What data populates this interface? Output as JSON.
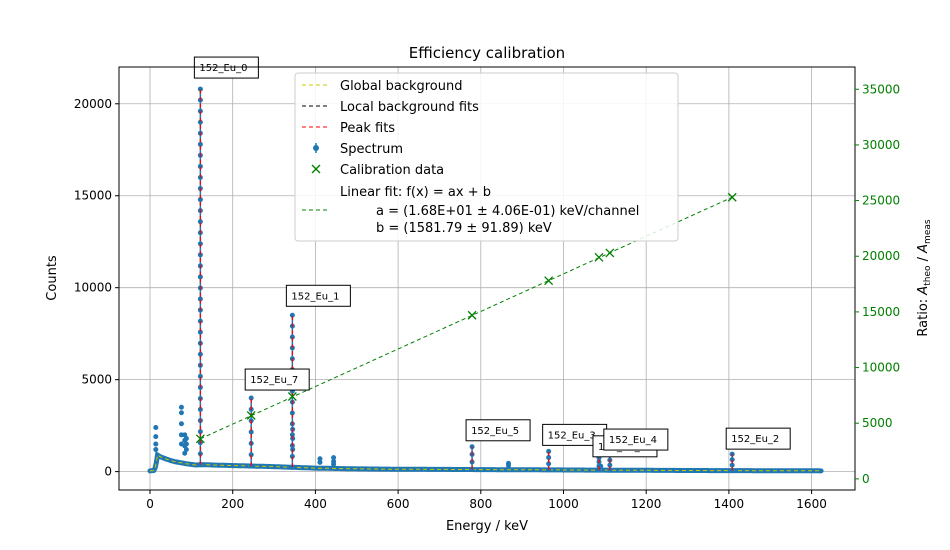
{
  "chart_data": {
    "type": "scatter",
    "title": "Efficiency calibration",
    "xlabel": "Energy / keV",
    "ylabel_left": "Counts",
    "ylabel_right": "Ratio: A_theo / A_meas",
    "xlim": [
      -75,
      1705
    ],
    "ylim_left": [
      -1000,
      22000
    ],
    "ylim_right": [
      -1000,
      37000
    ],
    "x_ticks": [
      "0",
      "200",
      "400",
      "600",
      "800",
      "1000",
      "1200",
      "1400",
      "1600"
    ],
    "y_ticks_left": [
      "0",
      "5000",
      "10000",
      "15000",
      "20000"
    ],
    "y_ticks_right": [
      "0",
      "5000",
      "10000",
      "15000",
      "20000",
      "25000",
      "30000",
      "35000"
    ],
    "grid": true,
    "legend_position": "top-center",
    "legend": [
      {
        "label": "Global background",
        "style": "dashed",
        "color": "#c8c800"
      },
      {
        "label": "Local background fits",
        "style": "dashed",
        "color": "#000000"
      },
      {
        "label": "Peak fits",
        "style": "dashed",
        "color": "#ff0000"
      },
      {
        "label": "Spectrum",
        "style": "errorbar-point",
        "color": "#1f77b4"
      },
      {
        "label": "Calibration data",
        "style": "x-marker",
        "color": "#008000"
      },
      {
        "label": "Linear fit: f(x) = ax + b",
        "style": "dashed",
        "color": "#008000",
        "lines": [
          "a = (1.68E+01 ± 4.06E-01)  keV/channel",
          "b = (1581.79 ± 91.89)  keV"
        ]
      }
    ],
    "peaks": [
      {
        "label": "152_Eu_0",
        "energy": 121.8,
        "counts": 20800
      },
      {
        "label": "152_Eu_1",
        "energy": 344.3,
        "counts": 8500
      },
      {
        "label": "152_Eu_7",
        "energy": 244.7,
        "counts": 4000
      },
      {
        "label": "152_Eu_5",
        "energy": 778.9,
        "counts": 1350
      },
      {
        "label": "152_Eu_3",
        "energy": 964.1,
        "counts": 1100
      },
      {
        "label": "152_Eu_6",
        "energy": 1085.8,
        "counts": 750
      },
      {
        "label": "152_Eu_4",
        "energy": 1112.1,
        "counts": 900
      },
      {
        "label": "152_Eu_2",
        "energy": 1408.0,
        "counts": 950
      }
    ],
    "calibration_data": {
      "x": [
        121.8,
        244.7,
        344.3,
        778.9,
        964.1,
        1085.8,
        1112.1,
        1408.0
      ],
      "y": [
        3600,
        5700,
        7400,
        14700,
        17800,
        19900,
        20300,
        25300
      ]
    },
    "fit_line": {
      "x": [
        121.8,
        1408.0
      ],
      "y": [
        3600,
        25300
      ]
    },
    "spectrum_background": {
      "x": [
        0,
        10,
        14,
        18,
        24,
        30,
        40,
        50,
        60,
        70,
        80,
        90,
        100,
        110,
        130,
        150,
        200,
        250,
        300,
        350,
        400,
        450,
        500,
        600,
        700,
        800,
        900,
        1000,
        1100,
        1200,
        1300,
        1400,
        1500,
        1600,
        1625
      ],
      "y": [
        40,
        60,
        300,
        900,
        820,
        760,
        680,
        600,
        540,
        500,
        460,
        420,
        390,
        360,
        380,
        360,
        330,
        300,
        270,
        230,
        190,
        170,
        150,
        130,
        120,
        110,
        100,
        90,
        80,
        70,
        60,
        55,
        50,
        45,
        40
      ]
    },
    "spectrum_spikes": [
      {
        "x": 14,
        "y": [
          2400,
          1900,
          1500,
          1200
        ]
      },
      {
        "x": 76,
        "y": [
          3500,
          3200,
          2600,
          2000,
          1500
        ]
      },
      {
        "x": 84,
        "y": [
          2000,
          1700,
          1400,
          1000
        ]
      },
      {
        "x": 88,
        "y": [
          1800,
          1500,
          1200
        ]
      },
      {
        "x": 345,
        "y": [
          2300,
          1800,
          1200
        ]
      },
      {
        "x": 411,
        "y": [
          700,
          500
        ]
      },
      {
        "x": 444,
        "y": [
          760,
          550,
          400
        ]
      },
      {
        "x": 867,
        "y": [
          450,
          330
        ]
      },
      {
        "x": 1090,
        "y": [
          300
        ]
      }
    ]
  }
}
